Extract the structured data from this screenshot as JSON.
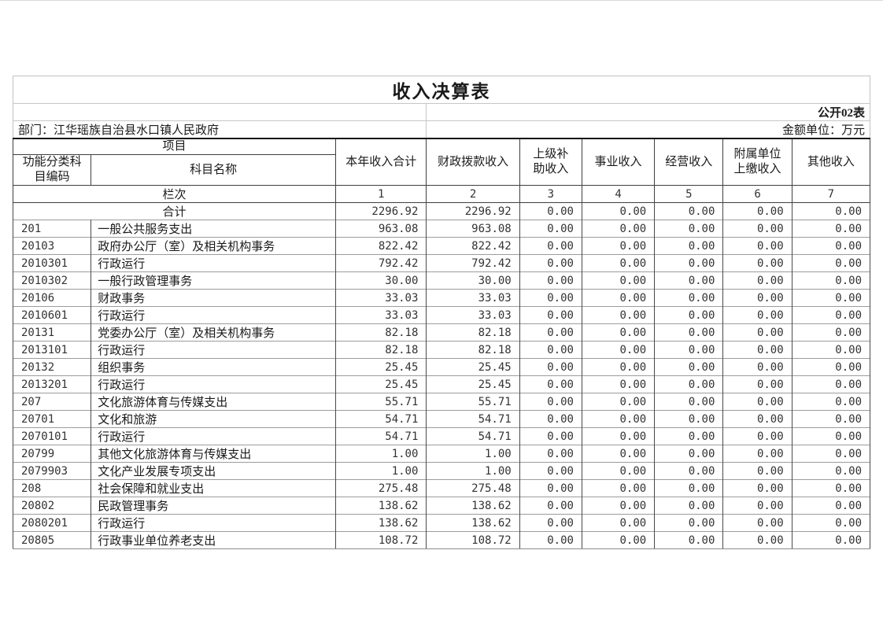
{
  "title": "收入决算表",
  "meta": {
    "form_label": "公开02表",
    "department": "部门：江华瑶族自治县水口镇人民政府",
    "unit": "金额单位：万元"
  },
  "table": {
    "header": {
      "project_label": "项目",
      "code_label": "功能分类科\n目编码",
      "name_label": "科目名称",
      "value_columns": [
        "本年收入合计",
        "财政拨款收入",
        "上级补\n助收入",
        "事业收入",
        "经营收入",
        "附属单位\n上缴收入",
        "其他收入"
      ],
      "index_row_label": "栏次",
      "column_indexes": [
        "1",
        "2",
        "3",
        "4",
        "5",
        "6",
        "7"
      ]
    },
    "rows": [
      {
        "code": "",
        "name": "合计",
        "total": true,
        "values": [
          "2296.92",
          "2296.92",
          "0.00",
          "0.00",
          "0.00",
          "0.00",
          "0.00"
        ]
      },
      {
        "code": "201",
        "name": "一般公共服务支出",
        "values": [
          "963.08",
          "963.08",
          "0.00",
          "0.00",
          "0.00",
          "0.00",
          "0.00"
        ]
      },
      {
        "code": "20103",
        "name": "政府办公厅（室）及相关机构事务",
        "values": [
          "822.42",
          "822.42",
          "0.00",
          "0.00",
          "0.00",
          "0.00",
          "0.00"
        ]
      },
      {
        "code": "2010301",
        "name": "行政运行",
        "values": [
          "792.42",
          "792.42",
          "0.00",
          "0.00",
          "0.00",
          "0.00",
          "0.00"
        ]
      },
      {
        "code": "2010302",
        "name": "一般行政管理事务",
        "values": [
          "30.00",
          "30.00",
          "0.00",
          "0.00",
          "0.00",
          "0.00",
          "0.00"
        ]
      },
      {
        "code": "20106",
        "name": "财政事务",
        "values": [
          "33.03",
          "33.03",
          "0.00",
          "0.00",
          "0.00",
          "0.00",
          "0.00"
        ]
      },
      {
        "code": "2010601",
        "name": "行政运行",
        "values": [
          "33.03",
          "33.03",
          "0.00",
          "0.00",
          "0.00",
          "0.00",
          "0.00"
        ]
      },
      {
        "code": "20131",
        "name": "党委办公厅（室）及相关机构事务",
        "values": [
          "82.18",
          "82.18",
          "0.00",
          "0.00",
          "0.00",
          "0.00",
          "0.00"
        ]
      },
      {
        "code": "2013101",
        "name": "行政运行",
        "values": [
          "82.18",
          "82.18",
          "0.00",
          "0.00",
          "0.00",
          "0.00",
          "0.00"
        ]
      },
      {
        "code": "20132",
        "name": "组织事务",
        "values": [
          "25.45",
          "25.45",
          "0.00",
          "0.00",
          "0.00",
          "0.00",
          "0.00"
        ]
      },
      {
        "code": "2013201",
        "name": "行政运行",
        "values": [
          "25.45",
          "25.45",
          "0.00",
          "0.00",
          "0.00",
          "0.00",
          "0.00"
        ]
      },
      {
        "code": "207",
        "name": "文化旅游体育与传媒支出",
        "values": [
          "55.71",
          "55.71",
          "0.00",
          "0.00",
          "0.00",
          "0.00",
          "0.00"
        ]
      },
      {
        "code": "20701",
        "name": "文化和旅游",
        "values": [
          "54.71",
          "54.71",
          "0.00",
          "0.00",
          "0.00",
          "0.00",
          "0.00"
        ]
      },
      {
        "code": "2070101",
        "name": "行政运行",
        "values": [
          "54.71",
          "54.71",
          "0.00",
          "0.00",
          "0.00",
          "0.00",
          "0.00"
        ]
      },
      {
        "code": "20799",
        "name": "其他文化旅游体育与传媒支出",
        "values": [
          "1.00",
          "1.00",
          "0.00",
          "0.00",
          "0.00",
          "0.00",
          "0.00"
        ]
      },
      {
        "code": "2079903",
        "name": "文化产业发展专项支出",
        "values": [
          "1.00",
          "1.00",
          "0.00",
          "0.00",
          "0.00",
          "0.00",
          "0.00"
        ]
      },
      {
        "code": "208",
        "name": "社会保障和就业支出",
        "values": [
          "275.48",
          "275.48",
          "0.00",
          "0.00",
          "0.00",
          "0.00",
          "0.00"
        ]
      },
      {
        "code": "20802",
        "name": "民政管理事务",
        "values": [
          "138.62",
          "138.62",
          "0.00",
          "0.00",
          "0.00",
          "0.00",
          "0.00"
        ]
      },
      {
        "code": "2080201",
        "name": "行政运行",
        "values": [
          "138.62",
          "138.62",
          "0.00",
          "0.00",
          "0.00",
          "0.00",
          "0.00"
        ]
      },
      {
        "code": "20805",
        "name": "行政事业单位养老支出",
        "values": [
          "108.72",
          "108.72",
          "0.00",
          "0.00",
          "0.00",
          "0.00",
          "0.00"
        ]
      }
    ]
  },
  "colors": {
    "page_background": "#ffffff",
    "text": "#1a1a1a",
    "number_text": "#333333",
    "border_light": "#c6c6c6",
    "border_row": "#9c9c9c",
    "border_dark": "#3f3f3f",
    "heavy_rule": "#111111"
  }
}
